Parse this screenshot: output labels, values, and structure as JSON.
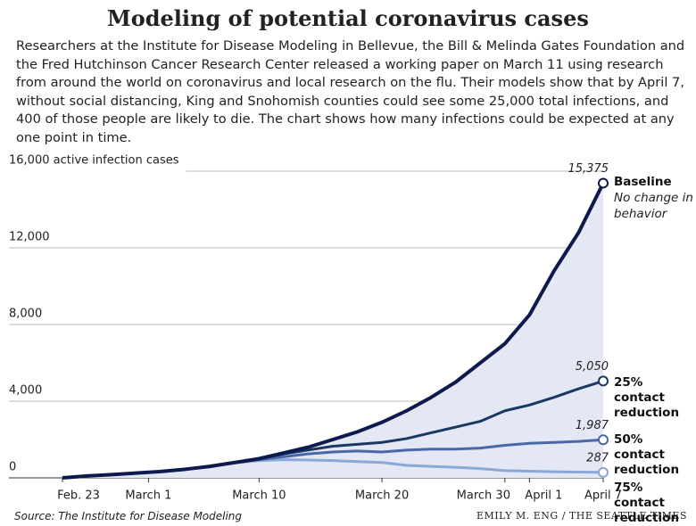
{
  "chart_data": {
    "type": "line",
    "title": "Modeling of potential coronavirus cases",
    "subtitle": "Researchers at the Institute for Disease Modeling in Bellevue, the Bill & Melinda Gates Foundation and the Fred Hutchinson Cancer Research Center released a working paper on March 11 using research from around the world on coronavirus and local research on the flu. Their models show that by April 7, without social distancing, King and Snohomish counties could see some 25,000 total infections, and 400 of those people are likely to die. The chart shows how many infections could be expected at any one point in time.",
    "source": "Source: The Institute for Disease Modeling",
    "credit": "Emily M. Eng / The Seattle Times",
    "x": [
      0,
      2,
      4,
      6,
      8,
      10,
      12,
      14,
      16,
      18,
      20,
      22,
      24,
      26,
      28,
      30,
      32,
      34,
      36,
      38,
      40,
      42,
      44
    ],
    "xlim": [
      0,
      44
    ],
    "xticks": [
      {
        "value": 0,
        "label": "Feb. 23"
      },
      {
        "value": 7,
        "label": "March 1"
      },
      {
        "value": 16,
        "label": "March 10"
      },
      {
        "value": 26,
        "label": "March 20"
      },
      {
        "value": 36,
        "label": "March 30"
      },
      {
        "value": 38,
        "label": "April 1"
      },
      {
        "value": 44,
        "label": "April 7"
      }
    ],
    "ylim": [
      0,
      16000
    ],
    "yticks": [
      0,
      {
        "value": 4000,
        "label": "4,000"
      },
      {
        "value": 8000,
        "label": "8,000"
      },
      {
        "value": 12000,
        "label": "12,000"
      },
      {
        "value": 16000,
        "label": "16,000 active infection cases"
      }
    ],
    "grid": true,
    "series": [
      {
        "name": "Baseline",
        "note": "No change in behavior",
        "color": "#0e1a4d",
        "values": [
          0,
          100,
          170,
          250,
          330,
          450,
          600,
          800,
          1000,
          1300,
          1600,
          2000,
          2400,
          2900,
          3500,
          4200,
          5000,
          6000,
          7000,
          8500,
          10800,
          12800,
          15375
        ],
        "value_labels": [
          null,
          null,
          null,
          null,
          null,
          null,
          null,
          null,
          null,
          null,
          null,
          null,
          null,
          null,
          null,
          null,
          null,
          null,
          null,
          null,
          null,
          null,
          "15,375"
        ]
      },
      {
        "name": "25% contact reduction",
        "color": "#1c3766",
        "values": [
          0,
          100,
          170,
          250,
          330,
          450,
          600,
          800,
          1000,
          1250,
          1450,
          1650,
          1750,
          1850,
          2050,
          2350,
          2650,
          2950,
          3500,
          3800,
          4200,
          4650,
          5050
        ],
        "value_labels": [
          null,
          null,
          null,
          null,
          null,
          null,
          null,
          null,
          null,
          null,
          null,
          null,
          null,
          null,
          null,
          null,
          null,
          null,
          null,
          null,
          null,
          null,
          "5,050"
        ]
      },
      {
        "name": "50% contact reduction",
        "color": "#4a67a6",
        "values": [
          0,
          100,
          170,
          250,
          330,
          450,
          600,
          780,
          950,
          1100,
          1250,
          1350,
          1400,
          1350,
          1450,
          1500,
          1500,
          1550,
          1700,
          1800,
          1850,
          1900,
          1987
        ],
        "value_labels": [
          null,
          null,
          null,
          null,
          null,
          null,
          null,
          null,
          null,
          null,
          null,
          null,
          null,
          null,
          null,
          null,
          null,
          null,
          null,
          null,
          null,
          null,
          "1,987"
        ]
      },
      {
        "name": "75% contact reduction",
        "color": "#8ba7d8",
        "values": [
          0,
          100,
          170,
          250,
          330,
          450,
          600,
          780,
          900,
          950,
          930,
          900,
          850,
          800,
          650,
          600,
          550,
          480,
          380,
          350,
          320,
          300,
          287
        ],
        "value_labels": [
          null,
          null,
          null,
          null,
          null,
          null,
          null,
          null,
          null,
          null,
          null,
          null,
          null,
          null,
          null,
          null,
          null,
          null,
          null,
          null,
          null,
          null,
          "287"
        ]
      }
    ]
  }
}
